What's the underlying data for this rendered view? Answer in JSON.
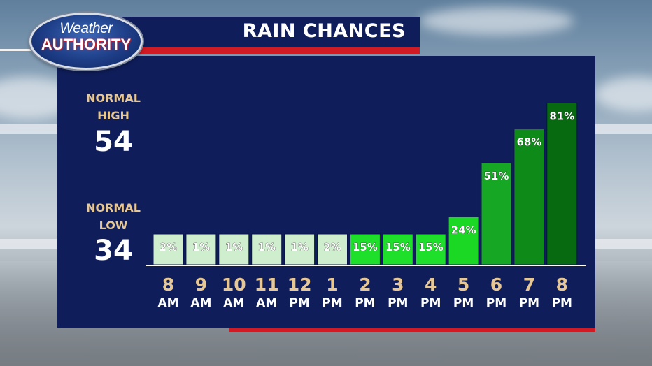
{
  "logo": {
    "line1": "Weather",
    "line2": "AUTHORITY"
  },
  "header": {
    "title": "RAIN CHANCES"
  },
  "normals": {
    "high": {
      "label_line1": "NORMAL",
      "label_line2": "HIGH",
      "value": "54"
    },
    "low": {
      "label_line1": "NORMAL",
      "label_line2": "LOW",
      "value": "34"
    }
  },
  "colors": {
    "panel": "#0f1d5a",
    "accent_red": "#d01a24",
    "label_tan": "#e7c895"
  },
  "chart_data": {
    "type": "bar",
    "title": "RAIN CHANCES",
    "categories": [
      "8 AM",
      "9 AM",
      "10 AM",
      "11 AM",
      "12 PM",
      "1 PM",
      "2 PM",
      "3 PM",
      "4 PM",
      "5 PM",
      "6 PM",
      "7 PM",
      "8 PM"
    ],
    "tick_hours": [
      "8",
      "9",
      "10",
      "11",
      "12",
      "1",
      "2",
      "3",
      "4",
      "5",
      "6",
      "7",
      "8"
    ],
    "tick_periods": [
      "AM",
      "AM",
      "AM",
      "AM",
      "PM",
      "PM",
      "PM",
      "PM",
      "PM",
      "PM",
      "PM",
      "PM",
      "PM"
    ],
    "values": [
      2,
      1,
      1,
      1,
      1,
      2,
      15,
      15,
      15,
      24,
      51,
      68,
      81
    ],
    "data_labels": [
      "2%",
      "1%",
      "1%",
      "1%",
      "1%",
      "2%",
      "15%",
      "15%",
      "15%",
      "24%",
      "51%",
      "68%",
      "81%"
    ],
    "bar_colors": [
      "#cfeecd",
      "#cfeecd",
      "#cfeecd",
      "#cfeecd",
      "#cfeecd",
      "#cfeecd",
      "#1ee02a",
      "#1ee02a",
      "#1ee02a",
      "#1ad824",
      "#16a824",
      "#0d8a18",
      "#076a10"
    ],
    "ylim": [
      0,
      100
    ],
    "grid": false,
    "legend": "none"
  }
}
